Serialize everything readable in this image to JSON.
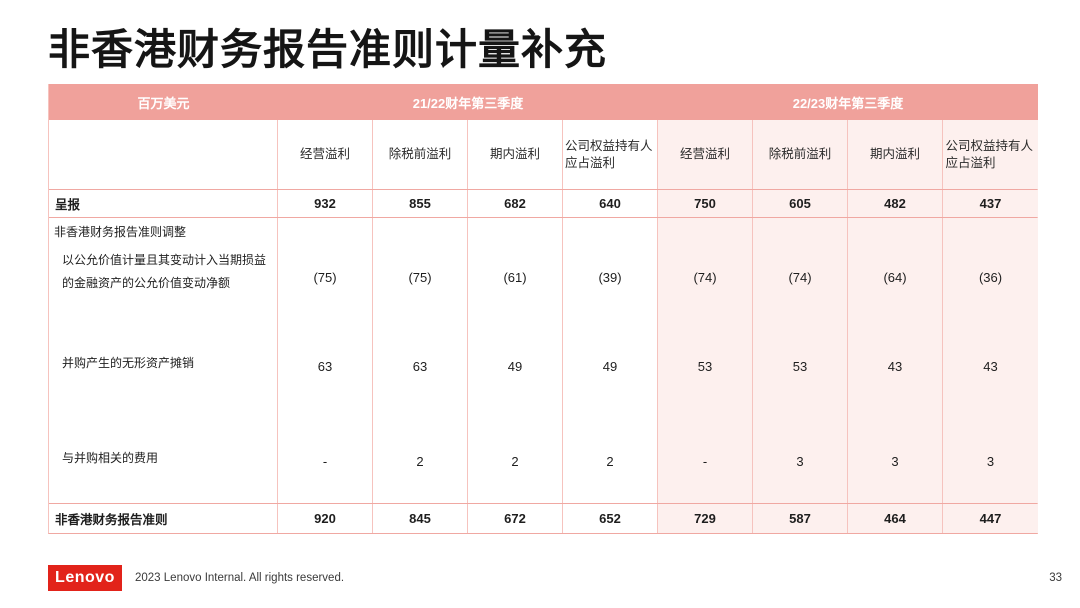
{
  "page": {
    "title": "非香港财务报告准则计量补充",
    "page_number": "33"
  },
  "table": {
    "unit_label": "百万美元",
    "period_headers": [
      "21/22财年第三季度",
      "22/23财年第三季度"
    ],
    "column_headers": [
      "经营溢利",
      "除税前溢利",
      "期内溢利",
      "公司权益持有人应占溢利"
    ],
    "reported": {
      "label": "呈报",
      "values": [
        "932",
        "855",
        "682",
        "640",
        "750",
        "605",
        "482",
        "437"
      ]
    },
    "adjustments_heading": "非香港财务报告准则调整",
    "adjustment_rows": [
      {
        "label": "以公允价值计量且其变动计入当期损益的金融资产的公允价值变动净额",
        "values": [
          "(75)",
          "(75)",
          "(61)",
          "(39)",
          "(74)",
          "(74)",
          "(64)",
          "(36)"
        ]
      },
      {
        "label": "并购产生的无形资产摊销",
        "values": [
          "63",
          "63",
          "49",
          "49",
          "53",
          "53",
          "43",
          "43"
        ]
      },
      {
        "label": "与并购相关的费用",
        "values": [
          "-",
          "2",
          "2",
          "2",
          "-",
          "3",
          "3",
          "3"
        ]
      }
    ],
    "total": {
      "label": "非香港财务报告准则",
      "values": [
        "920",
        "845",
        "672",
        "652",
        "729",
        "587",
        "464",
        "447"
      ]
    }
  },
  "footer": {
    "logo_text": "Lenovo",
    "copyright": "2023 Lenovo Internal. All rights reserved."
  },
  "colors": {
    "header_band_pink": "#f0a19b",
    "right_half_tint": "#fdf0ee",
    "border_pink": "#f0a8a2",
    "lenovo_red": "#e2231a"
  }
}
